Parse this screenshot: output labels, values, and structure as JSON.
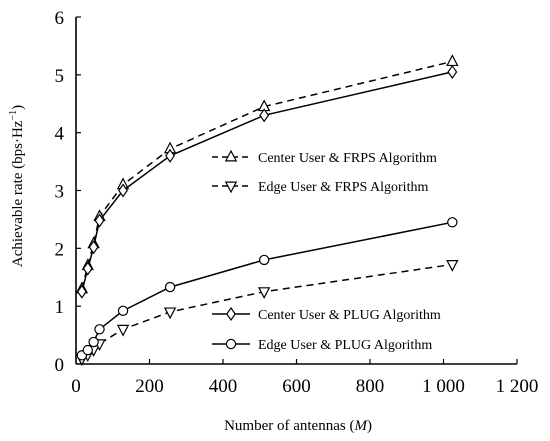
{
  "chart_data": {
    "type": "line",
    "xlabel_main": "Number of  antennas (",
    "xlabel_var": "M",
    "xlabel_end": ")",
    "ylabel_main": "Achievable rate (bps·Hz",
    "ylabel_exp": "−1",
    "ylabel_end": ")",
    "xlim": [
      0,
      1200
    ],
    "ylim": [
      0,
      6
    ],
    "x_ticks": [
      0,
      200,
      400,
      600,
      800,
      1000,
      1200
    ],
    "x_tick_labels": [
      "0",
      "200",
      "400",
      "600",
      "800",
      "1 000",
      "1 200"
    ],
    "y_ticks": [
      0,
      1,
      2,
      3,
      4,
      5,
      6
    ],
    "y_tick_labels": [
      "0",
      "1",
      "2",
      "3",
      "4",
      "5",
      "6"
    ],
    "grid": false,
    "series": [
      {
        "name": "Center User & FRPS Algorithm",
        "marker": "triangle-up",
        "dash": "dashed",
        "x": [
          16,
          32,
          48,
          64,
          128,
          256,
          512,
          1024
        ],
        "y": [
          1.3,
          1.7,
          2.08,
          2.55,
          3.1,
          3.72,
          4.45,
          5.23
        ]
      },
      {
        "name": "Edge User & FRPS Algorithm",
        "marker": "triangle-down",
        "dash": "dashed",
        "x": [
          16,
          32,
          48,
          64,
          128,
          256,
          512,
          1024
        ],
        "y": [
          0.09,
          0.16,
          0.25,
          0.35,
          0.6,
          0.9,
          1.25,
          1.72
        ]
      },
      {
        "name": "Center User & PLUG Algorithm",
        "marker": "diamond",
        "dash": "solid",
        "x": [
          16,
          32,
          48,
          64,
          128,
          256,
          512,
          1024
        ],
        "y": [
          1.25,
          1.65,
          2.02,
          2.48,
          3.0,
          3.6,
          4.3,
          5.05
        ]
      },
      {
        "name": "Edge User & PLUG Algorithm",
        "marker": "circle",
        "dash": "solid",
        "x": [
          16,
          32,
          48,
          64,
          128,
          256,
          512,
          1024
        ],
        "y": [
          0.15,
          0.24,
          0.38,
          0.6,
          0.92,
          1.33,
          1.8,
          2.45
        ]
      }
    ],
    "legend_placement": "inside, split: FRPS entries mid-right, PLUG entries lower-right"
  }
}
